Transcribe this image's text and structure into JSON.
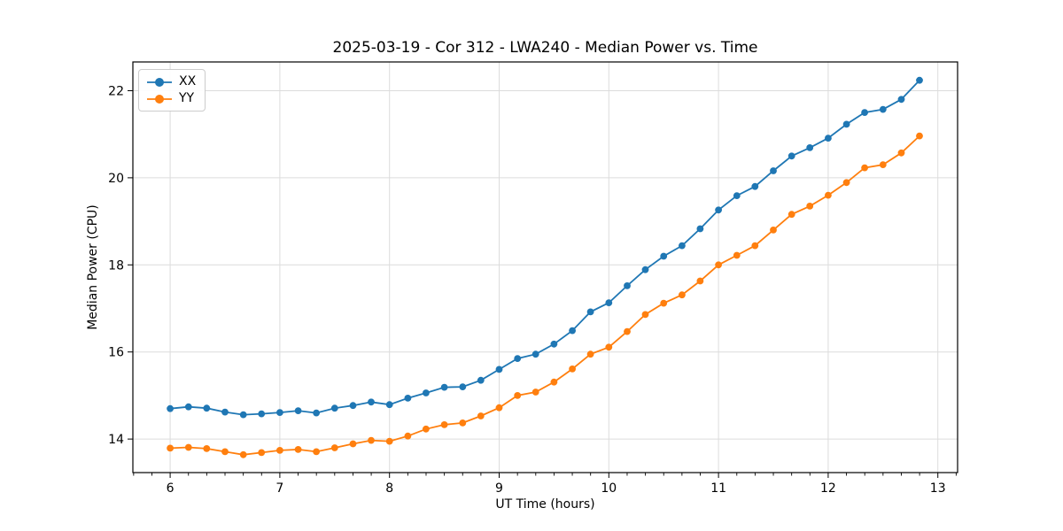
{
  "figure": {
    "background": "#ffffff"
  },
  "colors": {
    "grid": "#dcdcdc",
    "axes": "#000000",
    "text": "#000000",
    "series_xx": "#1f77b4",
    "series_yy": "#ff7f0e"
  },
  "chart_data": {
    "type": "line",
    "title": "2025-03-19 - Cor 312 - LWA240 - Median Power vs. Time",
    "xlabel": "UT Time (hours)",
    "ylabel": "Median Power (CPU)",
    "xlim": [
      5.66,
      13.18
    ],
    "ylim": [
      13.23,
      22.66
    ],
    "xticks": [
      6,
      7,
      8,
      9,
      10,
      11,
      12,
      13
    ],
    "yticks": [
      14,
      16,
      18,
      20,
      22
    ],
    "x_minor_step": 0.16667,
    "grid": true,
    "legend_position": "upper-left",
    "marker": "circle",
    "x": [
      6.0,
      6.167,
      6.333,
      6.5,
      6.667,
      6.833,
      7.0,
      7.167,
      7.333,
      7.5,
      7.667,
      7.833,
      8.0,
      8.167,
      8.333,
      8.5,
      8.667,
      8.833,
      9.0,
      9.167,
      9.333,
      9.5,
      9.667,
      9.833,
      10.0,
      10.167,
      10.333,
      10.5,
      10.667,
      10.833,
      11.0,
      11.167,
      11.333,
      11.5,
      11.667,
      11.833,
      12.0,
      12.167,
      12.333,
      12.5,
      12.667,
      12.833
    ],
    "series": [
      {
        "name": "XX",
        "color": "#1f77b4",
        "values": [
          14.7,
          14.74,
          14.71,
          14.62,
          14.56,
          14.58,
          14.61,
          14.65,
          14.6,
          14.71,
          14.77,
          14.85,
          14.79,
          14.94,
          15.06,
          15.19,
          15.2,
          15.35,
          15.6,
          15.85,
          15.95,
          16.18,
          16.49,
          16.92,
          17.13,
          17.52,
          17.89,
          18.2,
          18.44,
          18.83,
          19.26,
          19.59,
          19.8,
          20.16,
          20.5,
          20.69,
          20.91,
          21.23,
          21.5,
          21.57,
          21.8,
          22.24
        ]
      },
      {
        "name": "YY",
        "color": "#ff7f0e",
        "values": [
          13.79,
          13.81,
          13.78,
          13.71,
          13.64,
          13.69,
          13.74,
          13.76,
          13.71,
          13.8,
          13.89,
          13.97,
          13.95,
          14.07,
          14.23,
          14.33,
          14.37,
          14.53,
          14.72,
          15.0,
          15.08,
          15.31,
          15.61,
          15.95,
          16.11,
          16.47,
          16.86,
          17.12,
          17.31,
          17.63,
          18.0,
          18.22,
          18.44,
          18.8,
          19.16,
          19.35,
          19.6,
          19.89,
          20.23,
          20.3,
          20.57,
          20.96
        ]
      }
    ]
  }
}
